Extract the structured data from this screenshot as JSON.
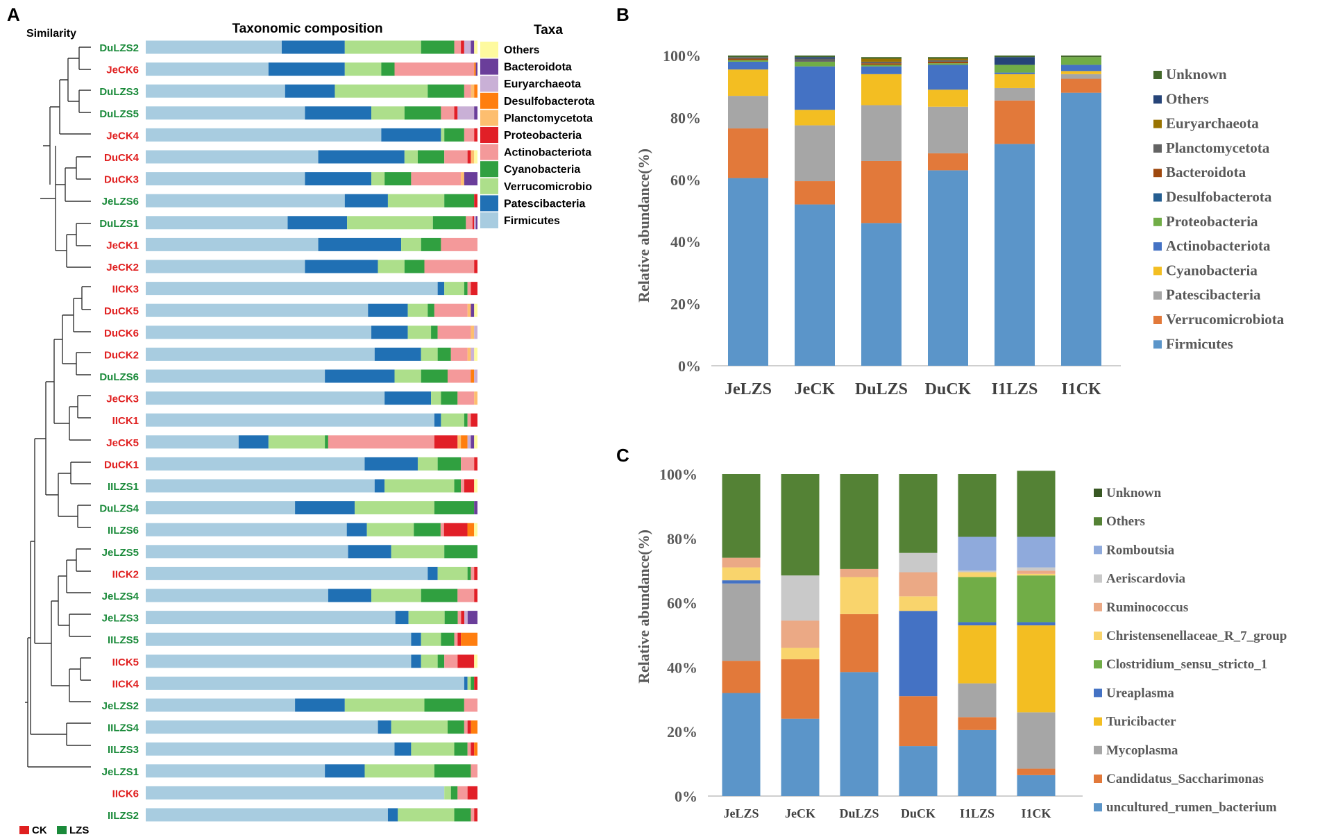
{
  "chart_data": [
    {
      "panel": "A",
      "type": "bar",
      "orientation": "horizontal",
      "stacked": true,
      "normalized": true,
      "title": "Taxonomic composition",
      "dendrogram_label": "Similarity",
      "legend_title": "Taxa",
      "legend_placement": "right",
      "taxa": [
        "Firmicutes",
        "Patescibacteria",
        "Verrucomicrobio",
        "Cyanobacteria",
        "Actinobacteriota",
        "Proteobacteria",
        "Planctomycetota",
        "Desulfobacterota",
        "Euryarchaeota",
        "Bacteroidota",
        "Others"
      ],
      "legend_entries": [
        "Others",
        "Bacteroidota",
        "Euryarchaeota",
        "Desulfobacterota",
        "Planctomycetota",
        "Proteobacteria",
        "Actinobacteriota",
        "Cyanobacteria",
        "Verrucomicrobio",
        "Patescibacteria",
        "Firmicutes"
      ],
      "colors": [
        "#a8cce0",
        "#2070b4",
        "#addf8b",
        "#30a040",
        "#f4999a",
        "#e11f27",
        "#fdbe6f",
        "#ff7e0f",
        "#c9b0d6",
        "#6a3e9a",
        "#fefa9f"
      ],
      "groups": {
        "CK": "#e02020",
        "LZS": "#1a8a3a"
      },
      "group_legend": [
        "CK",
        "LZS"
      ],
      "samples": [
        {
          "name": "DuLZS2",
          "group": "LZS",
          "values": [
            0.41,
            0.19,
            0.23,
            0.1,
            0.02,
            0.01,
            0,
            0,
            0.02,
            0.01,
            0.01
          ]
        },
        {
          "name": "JeCK6",
          "group": "CK",
          "values": [
            0.37,
            0.23,
            0.11,
            0.04,
            0.24,
            0,
            0,
            0.005,
            0,
            0.005,
            0
          ]
        },
        {
          "name": "DuLZS3",
          "group": "LZS",
          "values": [
            0.42,
            0.15,
            0.28,
            0.11,
            0.02,
            0,
            0.01,
            0.01,
            0,
            0,
            0
          ]
        },
        {
          "name": "DuLZS5",
          "group": "LZS",
          "values": [
            0.48,
            0.2,
            0.1,
            0.11,
            0.04,
            0.01,
            0,
            0,
            0.05,
            0.01,
            0
          ]
        },
        {
          "name": "JeCK4",
          "group": "CK",
          "values": [
            0.71,
            0.18,
            0.01,
            0.06,
            0.03,
            0.01,
            0,
            0,
            0,
            0,
            0
          ]
        },
        {
          "name": "DuCK4",
          "group": "CK",
          "values": [
            0.52,
            0.26,
            0.04,
            0.08,
            0.07,
            0.01,
            0.01,
            0,
            0,
            0,
            0.01
          ]
        },
        {
          "name": "DuCK3",
          "group": "CK",
          "values": [
            0.48,
            0.2,
            0.04,
            0.08,
            0.15,
            0,
            0.01,
            0,
            0,
            0.04,
            0
          ]
        },
        {
          "name": "JeLZS6",
          "group": "LZS",
          "values": [
            0.6,
            0.13,
            0.17,
            0.09,
            0,
            0.01,
            0,
            0,
            0,
            0,
            0
          ]
        },
        {
          "name": "DuLZS1",
          "group": "LZS",
          "values": [
            0.43,
            0.18,
            0.26,
            0.1,
            0.02,
            0.005,
            0,
            0,
            0.005,
            0.005,
            0
          ]
        },
        {
          "name": "JeCK1",
          "group": "CK",
          "values": [
            0.52,
            0.25,
            0.06,
            0.06,
            0.11,
            0,
            0,
            0,
            0,
            0,
            0
          ]
        },
        {
          "name": "JeCK2",
          "group": "CK",
          "values": [
            0.48,
            0.22,
            0.08,
            0.06,
            0.15,
            0.01,
            0,
            0,
            0,
            0,
            0
          ]
        },
        {
          "name": "IICK3",
          "group": "CK",
          "values": [
            0.88,
            0.02,
            0.06,
            0.01,
            0.01,
            0.02,
            0,
            0,
            0,
            0,
            0
          ]
        },
        {
          "name": "DuCK5",
          "group": "CK",
          "values": [
            0.67,
            0.12,
            0.06,
            0.02,
            0.1,
            0,
            0.01,
            0,
            0,
            0.01,
            0.01
          ]
        },
        {
          "name": "DuCK6",
          "group": "CK",
          "values": [
            0.68,
            0.11,
            0.07,
            0.02,
            0.1,
            0,
            0.01,
            0,
            0.01,
            0,
            0
          ]
        },
        {
          "name": "DuCK2",
          "group": "CK",
          "values": [
            0.69,
            0.14,
            0.05,
            0.04,
            0.05,
            0,
            0.01,
            0,
            0.01,
            0,
            0.01
          ]
        },
        {
          "name": "DuLZS6",
          "group": "LZS",
          "values": [
            0.54,
            0.21,
            0.08,
            0.08,
            0.07,
            0,
            0,
            0.01,
            0.01,
            0,
            0
          ]
        },
        {
          "name": "JeCK3",
          "group": "CK",
          "values": [
            0.72,
            0.14,
            0.03,
            0.05,
            0.05,
            0,
            0.01,
            0,
            0,
            0,
            0
          ]
        },
        {
          "name": "IICK1",
          "group": "CK",
          "values": [
            0.87,
            0.02,
            0.07,
            0.01,
            0.01,
            0.02,
            0,
            0,
            0,
            0,
            0
          ]
        },
        {
          "name": "JeCK5",
          "group": "CK",
          "values": [
            0.28,
            0.09,
            0.17,
            0.01,
            0.32,
            0.07,
            0.01,
            0.02,
            0.01,
            0.01,
            0.01
          ]
        },
        {
          "name": "DuCK1",
          "group": "CK",
          "values": [
            0.66,
            0.16,
            0.06,
            0.07,
            0.04,
            0.01,
            0,
            0,
            0,
            0,
            0
          ]
        },
        {
          "name": "IILZS1",
          "group": "LZS",
          "values": [
            0.69,
            0.03,
            0.21,
            0.02,
            0.01,
            0.03,
            0,
            0,
            0,
            0,
            0.01
          ]
        },
        {
          "name": "DuLZS4",
          "group": "LZS",
          "values": [
            0.45,
            0.18,
            0.24,
            0.12,
            0,
            0,
            0,
            0,
            0,
            0.01,
            0
          ]
        },
        {
          "name": "IILZS6",
          "group": "LZS",
          "values": [
            0.6,
            0.06,
            0.14,
            0.08,
            0.01,
            0.07,
            0,
            0.02,
            0,
            0,
            0.01
          ]
        },
        {
          "name": "JeLZS5",
          "group": "LZS",
          "values": [
            0.61,
            0.13,
            0.16,
            0.1,
            0,
            0,
            0,
            0,
            0,
            0,
            0
          ]
        },
        {
          "name": "IICK2",
          "group": "CK",
          "values": [
            0.85,
            0.03,
            0.09,
            0.01,
            0.01,
            0.01,
            0,
            0,
            0,
            0,
            0
          ]
        },
        {
          "name": "JeLZS4",
          "group": "LZS",
          "values": [
            0.55,
            0.13,
            0.15,
            0.11,
            0.05,
            0.01,
            0,
            0,
            0,
            0,
            0
          ]
        },
        {
          "name": "JeLZS3",
          "group": "LZS",
          "values": [
            0.76,
            0.04,
            0.11,
            0.04,
            0.01,
            0.01,
            0,
            0,
            0.01,
            0.03,
            0
          ]
        },
        {
          "name": "IILZS5",
          "group": "LZS",
          "values": [
            0.8,
            0.03,
            0.06,
            0.04,
            0.01,
            0.01,
            0,
            0.05,
            0,
            0,
            0
          ]
        },
        {
          "name": "IICK5",
          "group": "CK",
          "values": [
            0.8,
            0.03,
            0.05,
            0.02,
            0.04,
            0.05,
            0,
            0,
            0,
            0,
            0.01
          ]
        },
        {
          "name": "IICK4",
          "group": "CK",
          "values": [
            0.96,
            0.01,
            0.01,
            0.01,
            0,
            0.01,
            0,
            0,
            0,
            0,
            0
          ]
        },
        {
          "name": "JeLZS2",
          "group": "LZS",
          "values": [
            0.45,
            0.15,
            0.24,
            0.12,
            0.04,
            0,
            0,
            0,
            0,
            0,
            0
          ]
        },
        {
          "name": "IILZS4",
          "group": "LZS",
          "values": [
            0.7,
            0.04,
            0.17,
            0.05,
            0.01,
            0.01,
            0,
            0.02,
            0,
            0,
            0
          ]
        },
        {
          "name": "IILZS3",
          "group": "LZS",
          "values": [
            0.75,
            0.05,
            0.13,
            0.04,
            0.01,
            0.01,
            0,
            0.01,
            0,
            0,
            0
          ]
        },
        {
          "name": "JeLZS1",
          "group": "LZS",
          "values": [
            0.54,
            0.12,
            0.21,
            0.11,
            0.02,
            0,
            0,
            0,
            0,
            0,
            0
          ]
        },
        {
          "name": "IICK6",
          "group": "CK",
          "values": [
            0.9,
            0,
            0.02,
            0.02,
            0.03,
            0.03,
            0,
            0,
            0,
            0,
            0
          ]
        },
        {
          "name": "IILZS2",
          "group": "LZS",
          "values": [
            0.73,
            0.03,
            0.17,
            0.05,
            0.01,
            0.01,
            0,
            0,
            0,
            0,
            0
          ]
        }
      ]
    },
    {
      "panel": "B",
      "type": "bar",
      "stacked": true,
      "ylabel": "Relative abundance(%)",
      "ylim": [
        0,
        100
      ],
      "yticks": [
        "0%",
        "20%",
        "40%",
        "60%",
        "80%",
        "100%"
      ],
      "categories": [
        "JeLZS",
        "JeCK",
        "DuLZS",
        "DuCK",
        "I1LZS",
        "I1CK"
      ],
      "legend_placement": "right",
      "series": [
        {
          "name": "Firmicutes",
          "color": "#5b95c9",
          "values": [
            60.5,
            52,
            46,
            63,
            71.5,
            88
          ]
        },
        {
          "name": "Verrucomicrobiota",
          "color": "#e2793a",
          "values": [
            16,
            7.5,
            20,
            5.5,
            14,
            4.5
          ]
        },
        {
          "name": "Patescibacteria",
          "color": "#a6a6a6",
          "values": [
            10.5,
            18,
            18,
            15,
            4,
            1.5
          ]
        },
        {
          "name": "Cyanobacteria",
          "color": "#f3be22",
          "values": [
            8.5,
            5,
            10,
            5.5,
            4.5,
            1
          ]
        },
        {
          "name": "Actinobacteriota",
          "color": "#4472c4",
          "values": [
            2.5,
            14,
            2.5,
            8,
            0.5,
            2
          ]
        },
        {
          "name": "Proteobacteria",
          "color": "#71ad47",
          "values": [
            0.5,
            1.5,
            0.5,
            0.5,
            2.5,
            2.5
          ]
        },
        {
          "name": "Desulfobacterota",
          "color": "#255e91",
          "values": [
            0,
            0,
            0,
            0,
            0,
            0
          ]
        },
        {
          "name": "Bacteroidota",
          "color": "#9e480e",
          "values": [
            0.5,
            0,
            0.5,
            0.5,
            0,
            0
          ]
        },
        {
          "name": "Planctomycetota",
          "color": "#636363",
          "values": [
            0.5,
            1,
            0.5,
            0.5,
            0,
            0
          ]
        },
        {
          "name": "Euryarchaeota",
          "color": "#997300",
          "values": [
            0,
            0,
            1,
            0.5,
            0,
            0
          ]
        },
        {
          "name": "Others",
          "color": "#264478",
          "values": [
            0,
            0.5,
            0,
            0,
            2.5,
            0
          ]
        },
        {
          "name": "Unknown",
          "color": "#43682b",
          "values": [
            0.5,
            0.5,
            0.5,
            0.5,
            0.5,
            0.5
          ]
        }
      ]
    },
    {
      "panel": "C",
      "type": "bar",
      "stacked": true,
      "ylabel": "Relative abundance(%)",
      "ylim": [
        0,
        100
      ],
      "yticks": [
        "0%",
        "20%",
        "40%",
        "60%",
        "80%",
        "100%"
      ],
      "categories": [
        "JeLZS",
        "JeCK",
        "DuLZS",
        "DuCK",
        "I1LZS",
        "I1CK"
      ],
      "legend_placement": "right",
      "series": [
        {
          "name": "uncultured_rumen_bacterium",
          "color": "#5b95c9",
          "values": [
            32,
            24,
            38.5,
            15.5,
            20.5,
            6.5
          ]
        },
        {
          "name": "Candidatus_Saccharimonas",
          "color": "#e2793a",
          "values": [
            10,
            18.5,
            18,
            15.5,
            4,
            2
          ]
        },
        {
          "name": "Mycoplasma",
          "color": "#a6a6a6",
          "values": [
            24,
            0,
            0,
            0,
            10.5,
            17.5
          ]
        },
        {
          "name": "Turicibacter",
          "color": "#f3be22",
          "values": [
            0,
            0,
            0,
            0,
            18,
            27
          ]
        },
        {
          "name": "Ureaplasma",
          "color": "#4472c4",
          "values": [
            1,
            0,
            0,
            26.5,
            1,
            1
          ]
        },
        {
          "name": "Clostridium_sensu_stricto_1",
          "color": "#71ad47",
          "values": [
            0,
            0,
            0,
            0,
            14,
            14.5
          ]
        },
        {
          "name": "Christensenellaceae_R_7_group",
          "color": "#f9d46c",
          "values": [
            4,
            3.5,
            11.5,
            4.5,
            1.5,
            0.5
          ]
        },
        {
          "name": "Ruminococcus",
          "color": "#eba985",
          "values": [
            3,
            8.5,
            2.5,
            7.5,
            0,
            1
          ]
        },
        {
          "name": "Aeriscardovia",
          "color": "#c9c9c9",
          "values": [
            0,
            14,
            0,
            6,
            0.5,
            1
          ]
        },
        {
          "name": "Romboutsia",
          "color": "#8faadc",
          "values": [
            0,
            0,
            0,
            0,
            10.5,
            9.5
          ]
        },
        {
          "name": "Others",
          "color": "#548235",
          "values": [
            26,
            31.5,
            29.5,
            24.5,
            19.5,
            20.5
          ]
        },
        {
          "name": "Unknown",
          "color": "#385723",
          "values": [
            0,
            0,
            0,
            0,
            0,
            0
          ]
        }
      ]
    }
  ]
}
